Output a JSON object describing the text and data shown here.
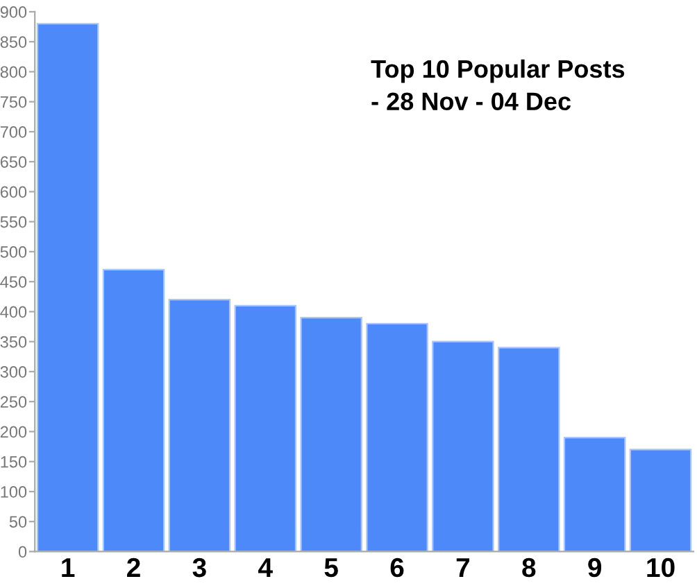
{
  "chart_data": {
    "type": "bar",
    "title": "Top 10 Popular Posts\n- 28 Nov - 04 Dec",
    "categories": [
      "1",
      "2",
      "3",
      "4",
      "5",
      "6",
      "7",
      "8",
      "9",
      "10"
    ],
    "values": [
      880,
      470,
      420,
      410,
      390,
      380,
      350,
      340,
      190,
      170
    ],
    "color": "#4d89f9",
    "ylim": [
      0,
      900
    ],
    "yticks": [
      0,
      50,
      100,
      150,
      200,
      250,
      300,
      350,
      400,
      450,
      500,
      550,
      600,
      650,
      700,
      750,
      800,
      850,
      900
    ],
    "grid": false
  }
}
